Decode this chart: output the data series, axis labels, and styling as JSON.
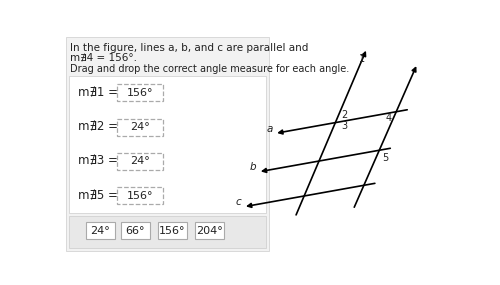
{
  "title_text": "In the figure, lines a, b, and c are parallel and",
  "title_text2": "m∄4 = 156°.",
  "subtitle": "Drag and drop the correct angle measure for each angle.",
  "angle_labels": [
    "m∄1 =",
    "m∄2 =",
    "m∄3 =",
    "m∄5 ="
  ],
  "angle_values": [
    "156°",
    "24°",
    "24°",
    "156°"
  ],
  "bank_values": [
    "24°",
    "66°",
    "156°",
    "204°"
  ],
  "bg_color": "#ffffff",
  "text_color": "#222222",
  "font_size_title": 7.5,
  "font_size_angle": 8.5,
  "font_size_box": 8.0,
  "font_size_bank": 8.0
}
